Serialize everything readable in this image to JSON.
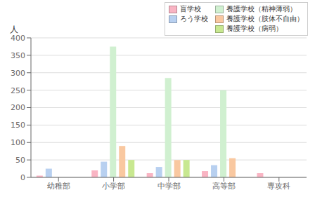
{
  "chart_data": {
    "type": "bar",
    "categories": [
      "幼稚部",
      "小学部",
      "中学部",
      "高等部",
      "専攻科"
    ],
    "series": [
      {
        "name": "盲学校",
        "color": "#f9b4c3",
        "values": [
          5,
          20,
          12,
          18,
          12
        ]
      },
      {
        "name": "ろう学校",
        "color": "#b8d0f0",
        "values": [
          25,
          45,
          30,
          35,
          0
        ]
      },
      {
        "name": "養護学校（精神薄弱）",
        "color": "#d0f0d0",
        "values": [
          0,
          375,
          285,
          250,
          0
        ]
      },
      {
        "name": "養護学校（肢体不自由）",
        "color": "#f9c8a0",
        "values": [
          0,
          90,
          50,
          55,
          0
        ]
      },
      {
        "name": "養護学校（病弱）",
        "color": "#c8e890",
        "values": [
          0,
          50,
          50,
          0,
          0
        ]
      }
    ],
    "ylabel": "人",
    "ylim": [
      0,
      400
    ],
    "yticks": [
      0,
      50,
      100,
      150,
      200,
      250,
      300,
      350,
      400
    ],
    "grid": true,
    "legend": "upper right"
  }
}
